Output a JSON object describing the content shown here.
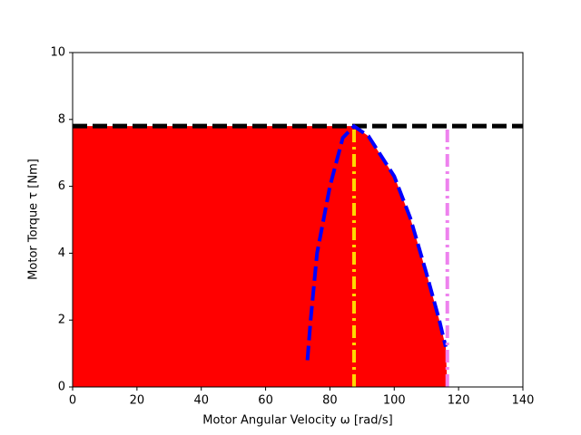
{
  "chart_data": {
    "type": "line",
    "xlabel": "Motor Angular Velocity ω [rad/s]",
    "ylabel": "Motor Torque τ [Nm]",
    "xlim": [
      0,
      140
    ],
    "xticks": [
      0,
      20,
      40,
      60,
      80,
      100,
      120,
      140
    ],
    "ylim": [
      0,
      10
    ],
    "yticks": [
      0,
      2,
      4,
      6,
      8,
      10
    ],
    "grid": false,
    "series": [
      {
        "color": "#ff0000",
        "fill": true,
        "dash": "solid",
        "x": [
          0,
          87.5,
          92,
          100,
          105,
          110,
          114,
          116,
          116.5
        ],
        "values": [
          7.8,
          7.8,
          7.5,
          6.3,
          5.05,
          3.4,
          2,
          1.2,
          0
        ]
      },
      {
        "color": "#000000",
        "fill": false,
        "dash": "dashed",
        "x": [
          0,
          140
        ],
        "values": [
          7.8,
          7.8
        ]
      },
      {
        "color": "#0000ff",
        "fill": false,
        "dash": "dashed",
        "x": [
          73,
          74,
          76,
          80,
          84,
          87.5,
          92,
          100,
          105,
          110,
          114,
          116
        ],
        "values": [
          0.8,
          2,
          4,
          6,
          7.45,
          7.8,
          7.5,
          6.3,
          5.05,
          3.4,
          2,
          1.2
        ]
      },
      {
        "color": "#ffd700",
        "fill": false,
        "dash": "dashdot",
        "x": [
          87.5,
          87.5
        ],
        "values": [
          0,
          7.8
        ]
      },
      {
        "color": "#ee82ee",
        "fill": false,
        "dash": "dashdot",
        "x": [
          116.5,
          116.5
        ],
        "values": [
          0,
          7.8
        ]
      }
    ]
  }
}
